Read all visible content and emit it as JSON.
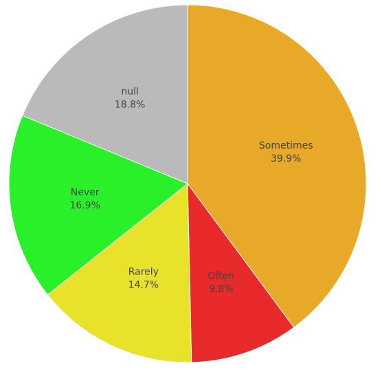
{
  "chart_data": {
    "type": "pie",
    "slices": [
      {
        "label": "Sometimes",
        "value": 39.9,
        "percent_text": "39.9%",
        "color": "#E8A828"
      },
      {
        "label": "Often",
        "value": 9.8,
        "percent_text": "9.8%",
        "color": "#E82A2A"
      },
      {
        "label": "Rarely",
        "value": 14.7,
        "percent_text": "14.7%",
        "color": "#E8E22A"
      },
      {
        "label": "Never",
        "value": 16.9,
        "percent_text": "16.9%",
        "color": "#2AF02A"
      },
      {
        "label": "null",
        "value": 18.8,
        "percent_text": "18.8%",
        "color": "#BABABA"
      }
    ],
    "start_angle_deg": 0,
    "direction": "clockwise",
    "slice_border_color": "#ffffff",
    "label_color": "#444444",
    "legend": "none"
  }
}
